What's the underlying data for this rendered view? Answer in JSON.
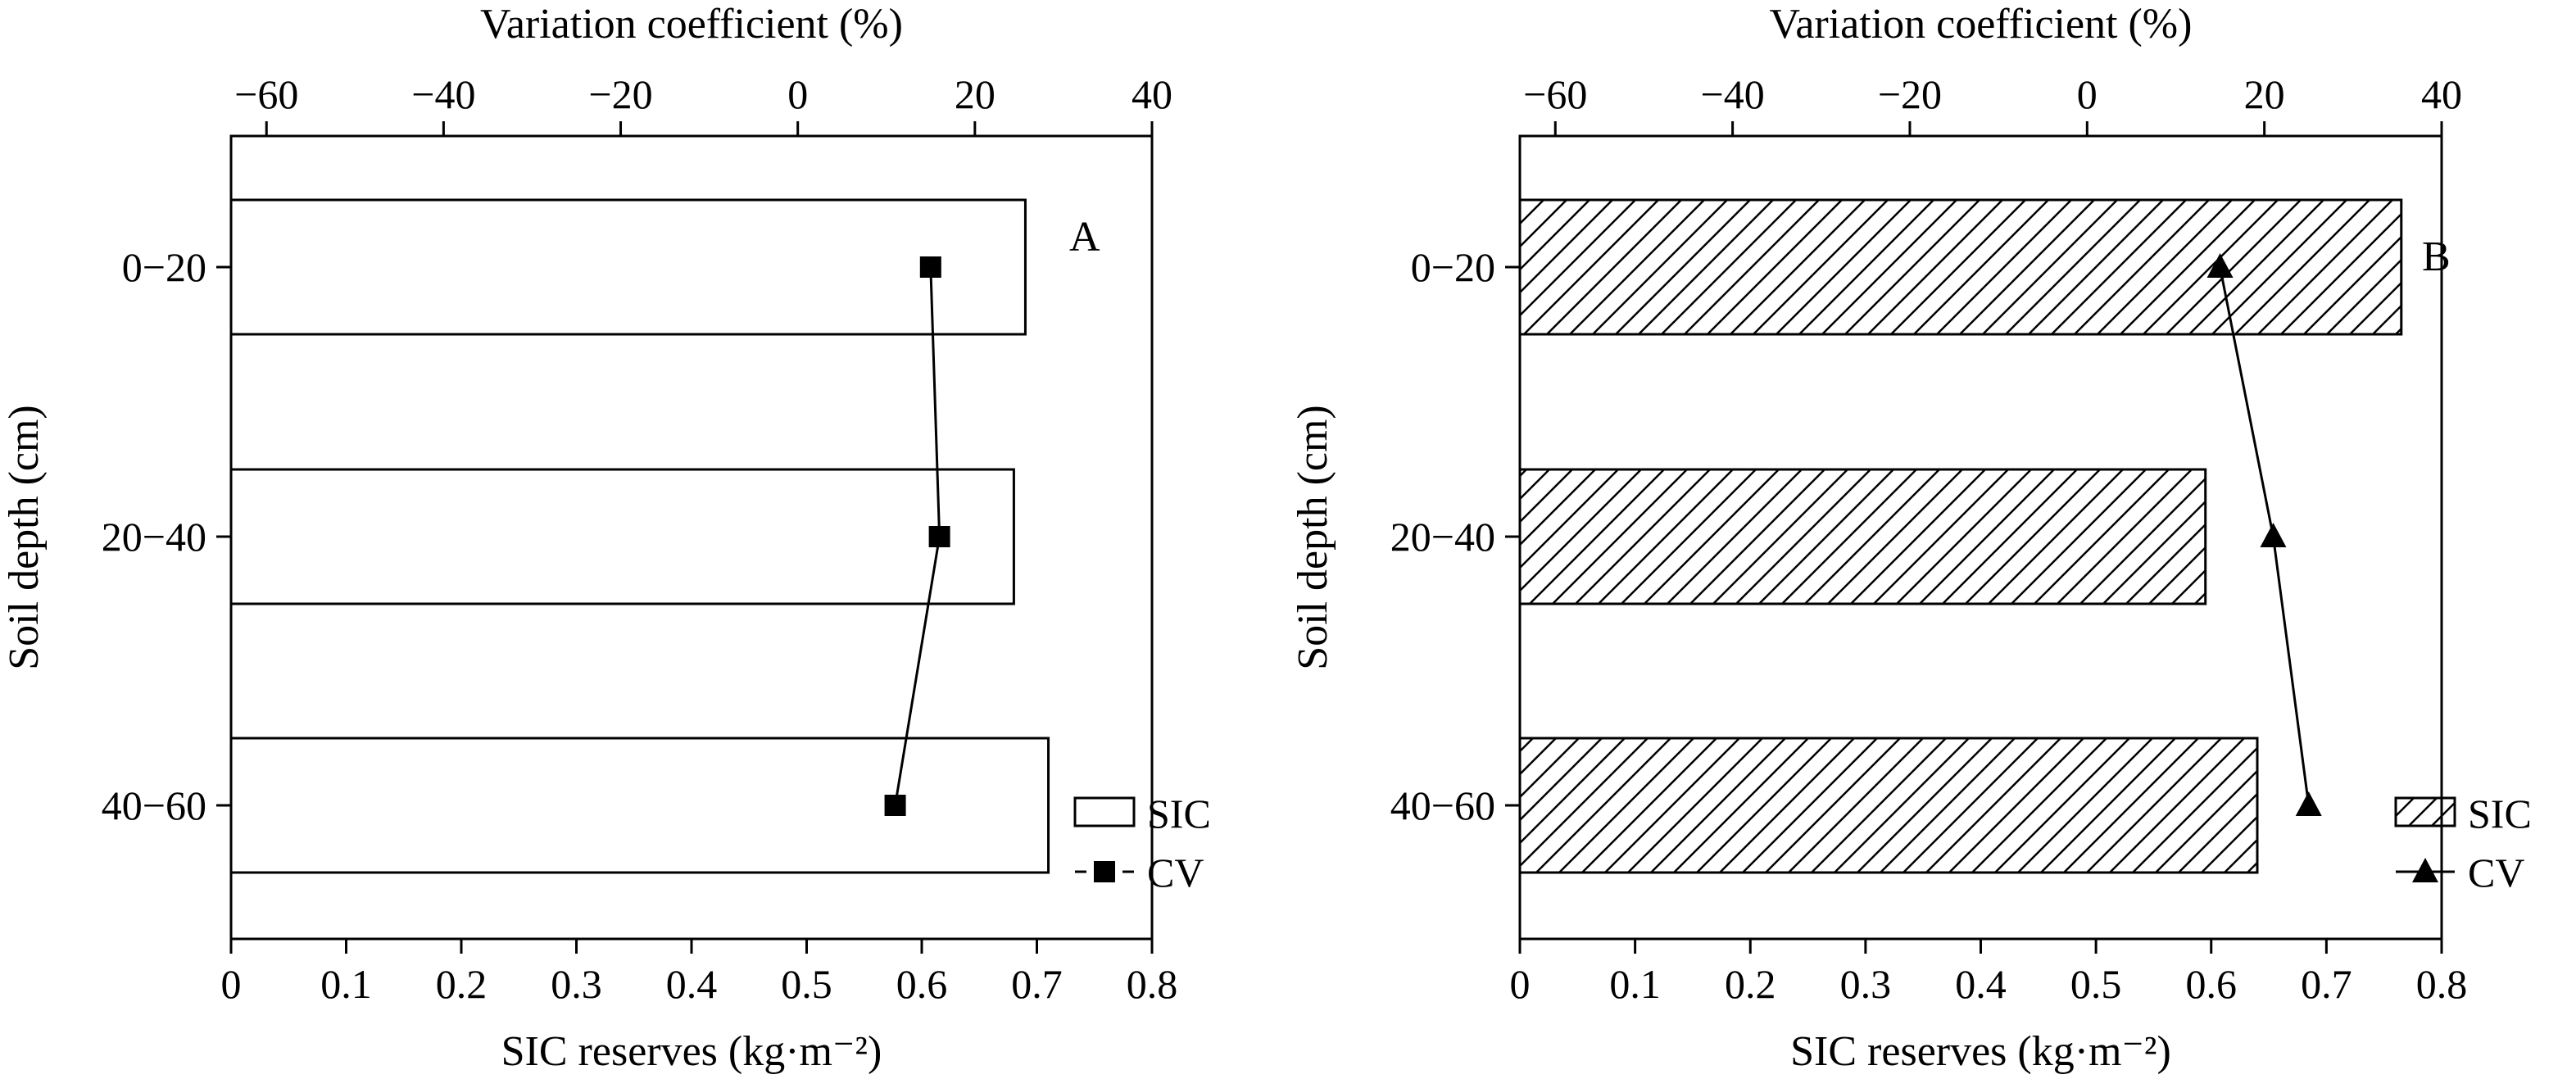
{
  "chart_data": [
    {
      "type": "bar",
      "orientation": "horizontal",
      "panel_label": "A",
      "categories": [
        "0−20",
        "20−40",
        "40−60"
      ],
      "series": [
        {
          "name": "SIC",
          "axis": "bottom",
          "values": [
            0.69,
            0.68,
            0.71
          ],
          "fill": "none"
        },
        {
          "name": "CV",
          "axis": "top",
          "type": "line",
          "marker": "square",
          "values": [
            15,
            16,
            11
          ]
        }
      ],
      "ylabel": "Soil depth (cm)",
      "xlabel_bottom": "SIC reserves (kg·m⁻²)",
      "xlabel_top": "Variation coefficient (%)",
      "xlim_bottom": [
        0,
        0.8
      ],
      "xlim_top": [
        -64,
        40
      ],
      "xticks_bottom": [
        "0",
        "0.1",
        "0.2",
        "0.3",
        "0.4",
        "0.5",
        "0.6",
        "0.7",
        "0.8"
      ],
      "xticks_top": [
        "−60",
        "−40",
        "−20",
        "0",
        "20",
        "40"
      ],
      "legend": {
        "placement": "bottom-right",
        "entries": [
          "SIC",
          "CV"
        ]
      },
      "grid": false
    },
    {
      "type": "bar",
      "orientation": "horizontal",
      "panel_label": "B",
      "categories": [
        "0−20",
        "20−40",
        "40−60"
      ],
      "series": [
        {
          "name": "SIC",
          "axis": "bottom",
          "values": [
            0.765,
            0.595,
            0.64
          ],
          "fill": "hatched"
        },
        {
          "name": "CV",
          "axis": "top",
          "type": "line",
          "marker": "triangle",
          "values": [
            15,
            21,
            25
          ]
        }
      ],
      "ylabel": "Soil depth (cm)",
      "xlabel_bottom": "SIC reserves (kg·m⁻²)",
      "xlabel_top": "Variation coefficient (%)",
      "xlim_bottom": [
        0,
        0.8
      ],
      "xlim_top": [
        -64,
        40
      ],
      "xticks_bottom": [
        "0",
        "0.1",
        "0.2",
        "0.3",
        "0.4",
        "0.5",
        "0.6",
        "0.7",
        "0.8"
      ],
      "xticks_top": [
        "−60",
        "−40",
        "−20",
        "0",
        "20",
        "40"
      ],
      "legend": {
        "placement": "bottom-right",
        "entries": [
          "SIC",
          "CV"
        ]
      },
      "grid": false
    }
  ]
}
